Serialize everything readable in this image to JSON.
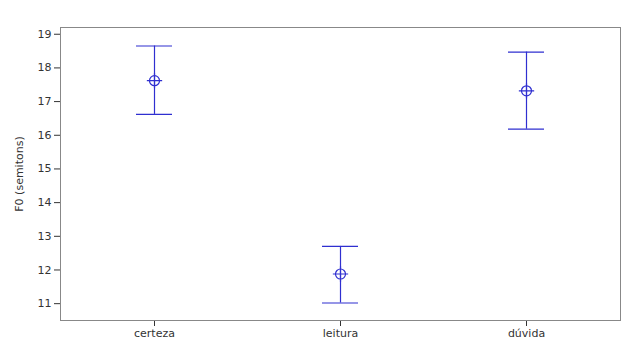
{
  "chart_data": {
    "type": "errorbar",
    "y_label": "F0 (semitons)",
    "categories": [
      "certeza",
      "leitura",
      "dúvida"
    ],
    "values": [
      17.62,
      11.88,
      17.32
    ],
    "lower": [
      16.62,
      11.02,
      16.18
    ],
    "upper": [
      18.65,
      12.7,
      18.47
    ],
    "color": "#2f2fd0",
    "marker": "circle-cross",
    "ylim": [
      10.5,
      19.2
    ],
    "yticks": [
      11,
      12,
      13,
      14,
      15,
      16,
      17,
      18,
      19
    ],
    "grid": false
  }
}
